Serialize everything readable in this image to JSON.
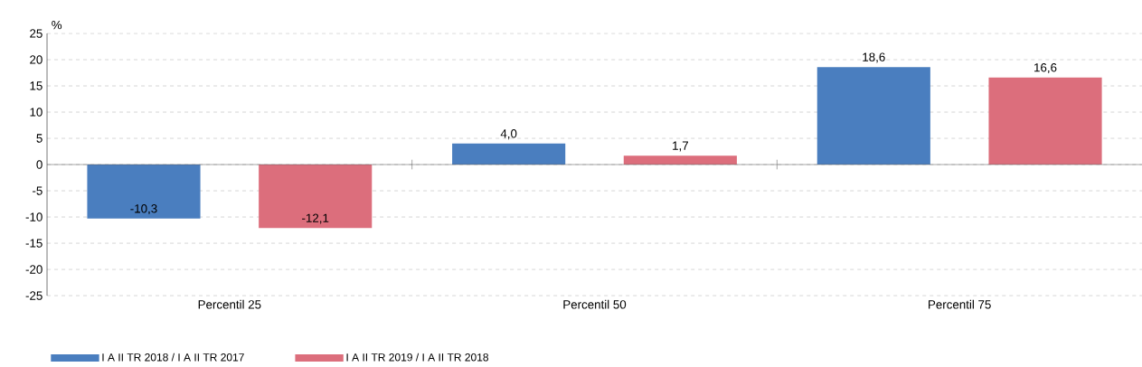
{
  "chart_data": {
    "type": "bar",
    "ylabel": "%",
    "categories": [
      "Percentil 25",
      "Percentil 50",
      "Percentil 75"
    ],
    "series": [
      {
        "name": "I A II TR 2018 / I A II TR 2017",
        "color": "#4a7ebf",
        "values": [
          -10.3,
          4.0,
          18.6
        ],
        "value_labels": [
          "-10,3",
          "4,0",
          "18,6"
        ]
      },
      {
        "name": "I A II TR 2019 / I A II TR 2018",
        "color": "#dc6e7c",
        "values": [
          -12.1,
          1.7,
          16.6
        ],
        "value_labels": [
          "-12,1",
          "1,7",
          "16,6"
        ]
      }
    ],
    "ylim": [
      -25,
      25
    ],
    "yticks": [
      -25,
      -20,
      -15,
      -10,
      -5,
      0,
      5,
      10,
      15,
      20,
      25
    ],
    "grid": "y",
    "legend": "bottom left"
  }
}
